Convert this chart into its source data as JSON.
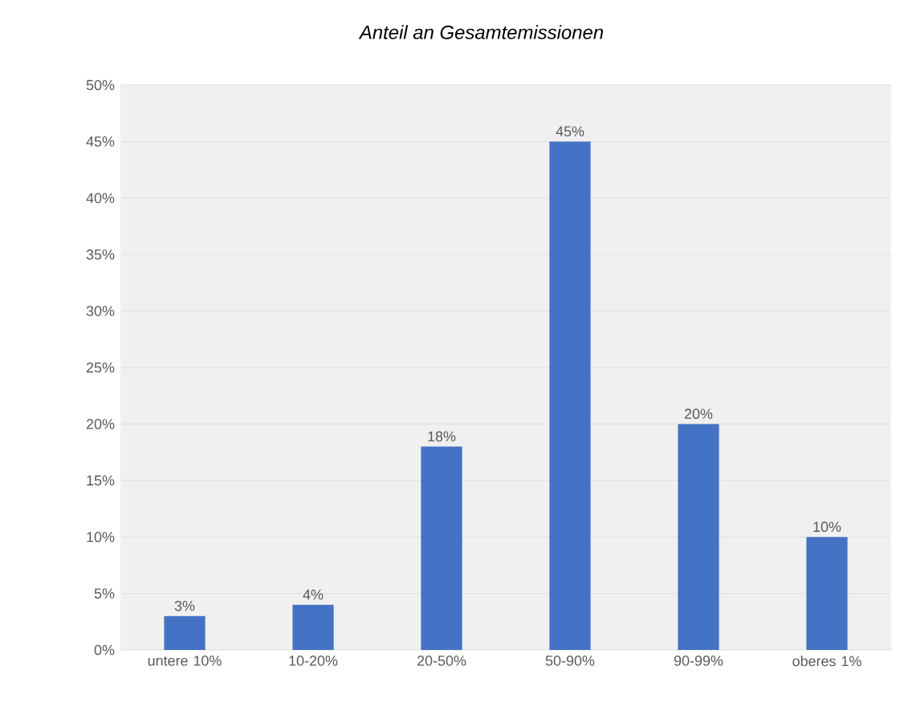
{
  "chart_data": {
    "type": "bar",
    "title": "Anteil an Gesamtemissionen",
    "categories": [
      "untere 10%",
      "10-20%",
      "20-50%",
      "50-90%",
      "90-99%",
      "oberes 1%"
    ],
    "values": [
      3,
      4,
      18,
      45,
      20,
      10
    ],
    "value_labels": [
      "3%",
      "4%",
      "18%",
      "45%",
      "20%",
      "10%"
    ],
    "color": "#4472c4",
    "ylim": [
      0,
      50
    ],
    "yticks": [
      {
        "value": 0,
        "label": "0%"
      },
      {
        "value": 5,
        "label": "5%"
      },
      {
        "value": 10,
        "label": "10%"
      },
      {
        "value": 15,
        "label": "15%"
      },
      {
        "value": 20,
        "label": "20%"
      },
      {
        "value": 25,
        "label": "25%"
      },
      {
        "value": 30,
        "label": "30%"
      },
      {
        "value": 35,
        "label": "35%"
      },
      {
        "value": 40,
        "label": "40%"
      },
      {
        "value": 45,
        "label": "45%"
      },
      {
        "value": 50,
        "label": "50%"
      }
    ],
    "grid": "y"
  }
}
